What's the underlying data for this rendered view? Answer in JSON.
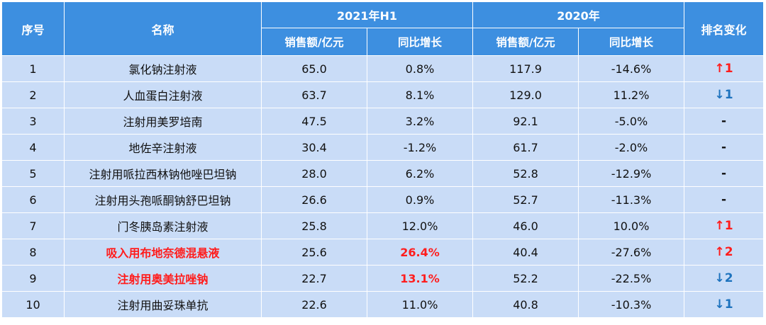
{
  "header": {
    "rank": "序号",
    "name": "名称",
    "period1": "2021年H1",
    "period2": "2020年",
    "rank_change": "排名变化",
    "sales": "销售额/亿元",
    "growth": "同比增长"
  },
  "colors": {
    "header_bg": "#3d8fe0",
    "row_bg": "#c9dcf7",
    "highlight": "#ff1d1d",
    "down": "#1e73be"
  },
  "rows": [
    {
      "rank": "1",
      "name": "氯化钠注射液",
      "s2021": "65.0",
      "g2021": "0.8%",
      "s2020": "117.9",
      "g2020": "-14.6%",
      "change": "↑1",
      "dir": "up",
      "hl": false
    },
    {
      "rank": "2",
      "name": "人血蛋白注射液",
      "s2021": "63.7",
      "g2021": "8.1%",
      "s2020": "129.0",
      "g2020": "11.2%",
      "change": "↓1",
      "dir": "down",
      "hl": false
    },
    {
      "rank": "3",
      "name": "注射用美罗培南",
      "s2021": "47.5",
      "g2021": "3.2%",
      "s2020": "92.1",
      "g2020": "-5.0%",
      "change": "-",
      "dir": "same",
      "hl": false
    },
    {
      "rank": "4",
      "name": "地佐辛注射液",
      "s2021": "30.4",
      "g2021": "-1.2%",
      "s2020": "61.7",
      "g2020": "-2.0%",
      "change": "-",
      "dir": "same",
      "hl": false
    },
    {
      "rank": "5",
      "name": "注射用哌拉西林钠他唑巴坦钠",
      "s2021": "28.0",
      "g2021": "6.2%",
      "s2020": "52.8",
      "g2020": "-12.9%",
      "change": "-",
      "dir": "same",
      "hl": false
    },
    {
      "rank": "6",
      "name": "注射用头孢哌酮钠舒巴坦钠",
      "s2021": "26.6",
      "g2021": "0.9%",
      "s2020": "52.7",
      "g2020": "-11.3%",
      "change": "-",
      "dir": "same",
      "hl": false
    },
    {
      "rank": "7",
      "name": "门冬胰岛素注射液",
      "s2021": "25.8",
      "g2021": "12.0%",
      "s2020": "46.0",
      "g2020": "10.0%",
      "change": "↑1",
      "dir": "up",
      "hl": false
    },
    {
      "rank": "8",
      "name": "吸入用布地奈德混悬液",
      "s2021": "25.6",
      "g2021": "26.4%",
      "s2020": "40.4",
      "g2020": "-27.6%",
      "change": "↑2",
      "dir": "up",
      "hl": true
    },
    {
      "rank": "9",
      "name": "注射用奥美拉唑钠",
      "s2021": "22.7",
      "g2021": "13.1%",
      "s2020": "52.2",
      "g2020": "-22.5%",
      "change": "↓2",
      "dir": "down",
      "hl": true
    },
    {
      "rank": "10",
      "name": "注射用曲妥珠单抗",
      "s2021": "22.6",
      "g2021": "11.0%",
      "s2020": "40.8",
      "g2020": "-10.3%",
      "change": "↓1",
      "dir": "down",
      "hl": false
    }
  ]
}
